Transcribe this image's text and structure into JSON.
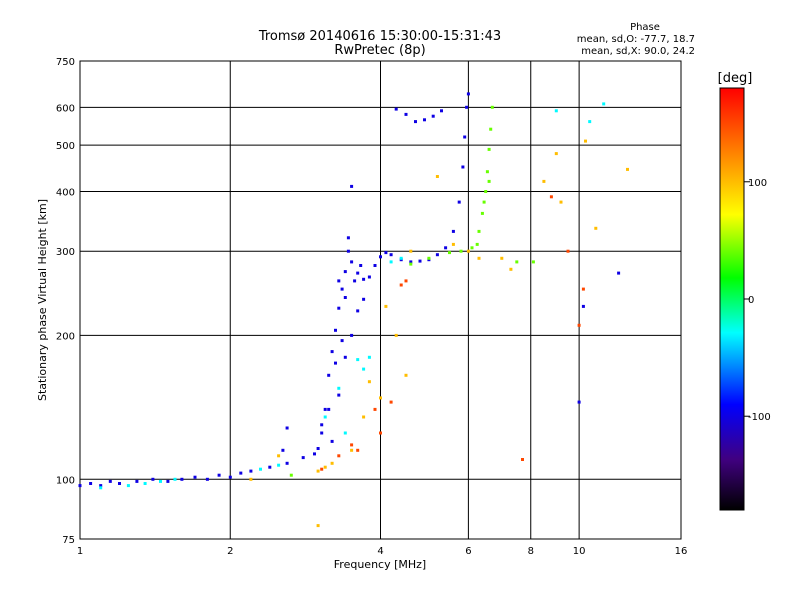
{
  "chart_data": {
    "type": "scatter",
    "title": "Tromsø 20140616 15:30:00-15:31:43",
    "subtitle": "RwPretec (8p)",
    "xlabel": "Frequency [MHz]",
    "ylabel": "Stationary phase Virtual Height [km]",
    "x_scale": "log",
    "y_scale": "log",
    "xlim": [
      1,
      16
    ],
    "ylim": [
      75,
      750
    ],
    "x_ticks": [
      1,
      2,
      4,
      6,
      8,
      10,
      16
    ],
    "y_ticks": [
      75,
      100,
      200,
      300,
      400,
      500,
      600,
      750
    ],
    "grid": true,
    "stats": {
      "heading": "Phase",
      "line_o": "mean, sd,O: -77.7, 18.7",
      "line_x": "mean, sd,X:  90.0, 24.2"
    },
    "colorbar": {
      "label": "[deg]",
      "range": [
        -180,
        180
      ],
      "ticks": [
        100,
        0,
        -100
      ],
      "palette": [
        "#000000",
        "#400080",
        "#0000ff",
        "#00ffff",
        "#00ff00",
        "#ffff00",
        "#ff8000",
        "#ff0000"
      ]
    },
    "series": [
      {
        "color_value": -100,
        "points": [
          [
            1.0,
            97
          ],
          [
            1.05,
            98
          ],
          [
            1.1,
            97
          ],
          [
            1.15,
            99
          ],
          [
            1.2,
            98
          ],
          [
            1.3,
            99
          ],
          [
            1.4,
            100
          ],
          [
            1.5,
            99
          ],
          [
            1.6,
            100
          ],
          [
            1.7,
            101
          ],
          [
            1.8,
            100
          ],
          [
            1.9,
            102
          ],
          [
            2.0,
            101
          ],
          [
            2.1,
            103
          ],
          [
            2.2,
            104
          ],
          [
            2.4,
            106
          ],
          [
            2.6,
            108
          ],
          [
            2.8,
            111
          ],
          [
            2.95,
            113
          ],
          [
            3.0,
            116
          ],
          [
            3.05,
            125
          ],
          [
            3.1,
            140
          ],
          [
            3.15,
            165
          ],
          [
            3.2,
            185
          ],
          [
            3.25,
            205
          ],
          [
            3.3,
            228
          ],
          [
            3.35,
            250
          ],
          [
            3.4,
            272
          ],
          [
            3.45,
            300
          ],
          [
            3.5,
            285
          ],
          [
            3.6,
            270
          ],
          [
            3.7,
            262
          ],
          [
            3.8,
            265
          ],
          [
            3.9,
            280
          ],
          [
            4.0,
            292
          ],
          [
            4.1,
            298
          ],
          [
            4.2,
            295
          ],
          [
            4.4,
            288
          ],
          [
            4.6,
            285
          ],
          [
            4.8,
            286
          ],
          [
            5.0,
            288
          ],
          [
            5.2,
            295
          ],
          [
            5.4,
            305
          ],
          [
            5.6,
            330
          ],
          [
            5.75,
            380
          ],
          [
            5.85,
            450
          ],
          [
            5.9,
            520
          ],
          [
            5.95,
            600
          ],
          [
            6.0,
            640
          ],
          [
            4.3,
            595
          ],
          [
            4.5,
            580
          ],
          [
            4.7,
            560
          ],
          [
            4.9,
            565
          ],
          [
            5.1,
            575
          ],
          [
            5.3,
            590
          ],
          [
            3.2,
            120
          ],
          [
            3.3,
            150
          ],
          [
            3.35,
            195
          ],
          [
            3.4,
            240
          ],
          [
            3.45,
            320
          ],
          [
            3.5,
            410
          ],
          [
            3.25,
            175
          ],
          [
            3.3,
            260
          ],
          [
            3.15,
            140
          ],
          [
            3.05,
            130
          ],
          [
            2.6,
            128
          ],
          [
            2.55,
            115
          ],
          [
            3.6,
            225
          ],
          [
            3.5,
            200
          ],
          [
            3.7,
            238
          ],
          [
            3.4,
            180
          ],
          [
            3.55,
            260
          ],
          [
            3.65,
            280
          ],
          [
            10.2,
            230
          ],
          [
            12.0,
            270
          ],
          [
            10.0,
            145
          ]
        ]
      },
      {
        "color_value": -30,
        "points": [
          [
            1.1,
            96
          ],
          [
            1.25,
            97
          ],
          [
            1.35,
            98
          ],
          [
            1.45,
            99
          ],
          [
            1.55,
            100
          ],
          [
            2.3,
            105
          ],
          [
            2.5,
            107
          ],
          [
            3.1,
            135
          ],
          [
            3.3,
            155
          ],
          [
            3.4,
            125
          ],
          [
            3.6,
            178
          ],
          [
            3.7,
            170
          ],
          [
            3.8,
            180
          ],
          [
            4.2,
            285
          ],
          [
            4.4,
            290
          ],
          [
            10.5,
            560
          ],
          [
            11.2,
            610
          ],
          [
            9.0,
            590
          ]
        ]
      },
      {
        "color_value": 40,
        "points": [
          [
            2.65,
            102
          ],
          [
            4.6,
            282
          ],
          [
            5.0,
            290
          ],
          [
            5.5,
            298
          ],
          [
            5.8,
            300
          ],
          [
            6.1,
            305
          ],
          [
            6.3,
            330
          ],
          [
            6.4,
            360
          ],
          [
            6.5,
            400
          ],
          [
            6.55,
            440
          ],
          [
            6.6,
            490
          ],
          [
            6.65,
            540
          ],
          [
            6.7,
            600
          ],
          [
            6.25,
            310
          ],
          [
            6.45,
            380
          ],
          [
            6.6,
            420
          ],
          [
            7.5,
            285
          ],
          [
            8.1,
            285
          ]
        ]
      },
      {
        "color_value": 100,
        "points": [
          [
            3.0,
            104
          ],
          [
            3.1,
            106
          ],
          [
            3.2,
            108
          ],
          [
            3.5,
            115
          ],
          [
            3.7,
            135
          ],
          [
            3.8,
            160
          ],
          [
            4.0,
            148
          ],
          [
            4.1,
            230
          ],
          [
            4.3,
            200
          ],
          [
            4.5,
            165
          ],
          [
            4.6,
            300
          ],
          [
            5.2,
            430
          ],
          [
            5.6,
            310
          ],
          [
            6.0,
            300
          ],
          [
            6.3,
            290
          ],
          [
            7.0,
            290
          ],
          [
            7.3,
            275
          ],
          [
            8.5,
            420
          ],
          [
            9.2,
            380
          ],
          [
            10.3,
            510
          ],
          [
            10.8,
            335
          ],
          [
            12.5,
            445
          ],
          [
            2.2,
            100
          ],
          [
            2.5,
            112
          ],
          [
            3.0,
            80
          ],
          [
            9.0,
            480
          ]
        ]
      },
      {
        "color_value": 150,
        "points": [
          [
            3.05,
            105
          ],
          [
            3.3,
            112
          ],
          [
            3.5,
            118
          ],
          [
            3.6,
            115
          ],
          [
            3.9,
            140
          ],
          [
            4.0,
            125
          ],
          [
            4.2,
            145
          ],
          [
            4.4,
            255
          ],
          [
            4.5,
            260
          ],
          [
            9.5,
            300
          ],
          [
            10.0,
            210
          ],
          [
            10.2,
            250
          ],
          [
            7.7,
            110
          ],
          [
            8.8,
            390
          ]
        ]
      }
    ]
  }
}
